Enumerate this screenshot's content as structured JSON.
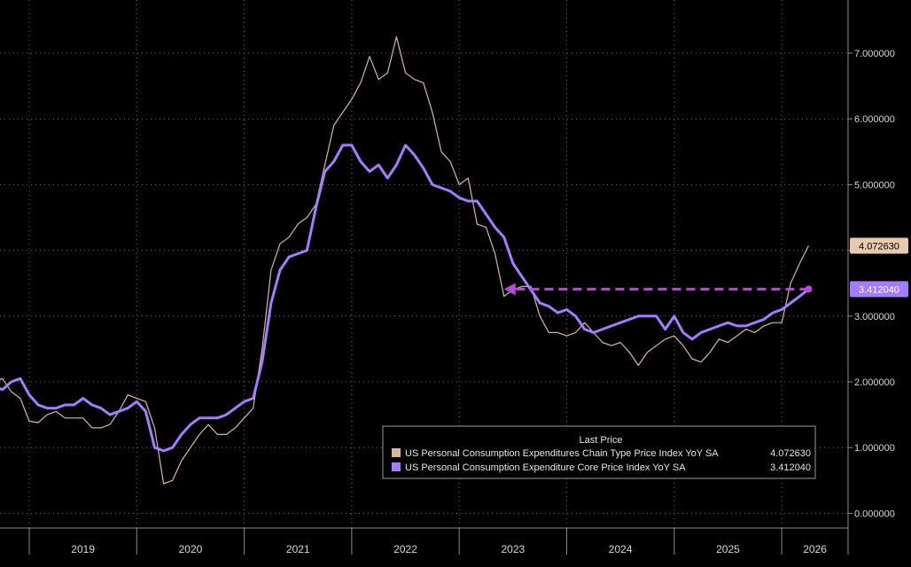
{
  "chart_data": {
    "type": "line",
    "title": "",
    "xlabel": "",
    "ylabel": "",
    "ylim": [
      0,
      7.5
    ],
    "y_ticks": [
      "0.000000",
      "1.000000",
      "2.000000",
      "3.000000",
      "4.000000",
      "5.000000",
      "6.000000",
      "7.000000"
    ],
    "x_ticks": [
      "2019",
      "2020",
      "2021",
      "2022",
      "2023",
      "2024",
      "2025",
      "2026"
    ],
    "grid": true,
    "legend_position": "bottom-right",
    "legend_title": "Last Price",
    "series": [
      {
        "name": "US Personal Consumption Expenditures Chain Type Price Index YoY SA",
        "last_price": "4.072630",
        "color": "#d9b89c",
        "x": [
          "2018-08",
          "2018-09",
          "2018-10",
          "2018-11",
          "2018-12",
          "2019-01",
          "2019-02",
          "2019-03",
          "2019-04",
          "2019-05",
          "2019-06",
          "2019-07",
          "2019-08",
          "2019-09",
          "2019-10",
          "2019-11",
          "2019-12",
          "2020-01",
          "2020-02",
          "2020-03",
          "2020-04",
          "2020-05",
          "2020-06",
          "2020-07",
          "2020-08",
          "2020-09",
          "2020-10",
          "2020-11",
          "2020-12",
          "2021-01",
          "2021-02",
          "2021-03",
          "2021-04",
          "2021-05",
          "2021-06",
          "2021-07",
          "2021-08",
          "2021-09",
          "2021-10",
          "2021-11",
          "2021-12",
          "2022-01",
          "2022-02",
          "2022-03",
          "2022-04",
          "2022-05",
          "2022-06",
          "2022-07",
          "2022-08",
          "2022-09",
          "2022-10",
          "2022-11",
          "2022-12",
          "2023-01",
          "2023-02",
          "2023-03",
          "2023-04",
          "2023-05",
          "2023-06",
          "2023-07",
          "2023-08",
          "2023-09",
          "2023-10",
          "2023-11",
          "2023-12",
          "2024-01",
          "2024-02",
          "2024-03",
          "2024-04",
          "2024-05",
          "2024-06",
          "2024-07",
          "2024-08",
          "2024-09",
          "2024-10",
          "2024-11",
          "2024-12",
          "2025-01",
          "2025-02",
          "2025-03",
          "2025-04",
          "2025-05",
          "2025-06",
          "2025-07",
          "2025-08",
          "2025-09",
          "2025-10",
          "2025-11",
          "2025-12",
          "2026-01",
          "2026-02",
          "2026-03",
          "2026-04"
        ],
        "values": [
          2.15,
          2.0,
          2.05,
          1.85,
          1.75,
          1.4,
          1.38,
          1.5,
          1.55,
          1.45,
          1.45,
          1.45,
          1.3,
          1.3,
          1.35,
          1.55,
          1.8,
          1.75,
          1.7,
          1.3,
          0.45,
          0.5,
          0.8,
          1.0,
          1.2,
          1.35,
          1.2,
          1.2,
          1.3,
          1.45,
          1.6,
          2.5,
          3.7,
          4.1,
          4.2,
          4.4,
          4.5,
          4.7,
          5.3,
          5.9,
          6.1,
          6.3,
          6.55,
          6.95,
          6.6,
          6.7,
          7.25,
          6.7,
          6.6,
          6.55,
          6.1,
          5.5,
          5.35,
          5.0,
          5.1,
          4.4,
          4.35,
          3.95,
          3.3,
          3.4,
          3.45,
          3.45,
          3.0,
          2.75,
          2.75,
          2.7,
          2.75,
          2.9,
          2.75,
          2.6,
          2.55,
          2.6,
          2.45,
          2.25,
          2.45,
          2.55,
          2.65,
          2.7,
          2.55,
          2.35,
          2.3,
          2.45,
          2.65,
          2.6,
          2.7,
          2.8,
          2.75,
          2.85,
          2.9,
          2.9,
          3.5,
          3.8,
          4.07
        ]
      },
      {
        "name": "US Personal Consumption Expenditure Core Price Index YoY SA",
        "last_price": "3.412040",
        "color": "#a47cff",
        "x": [
          "2018-08",
          "2018-09",
          "2018-10",
          "2018-11",
          "2018-12",
          "2019-01",
          "2019-02",
          "2019-03",
          "2019-04",
          "2019-05",
          "2019-06",
          "2019-07",
          "2019-08",
          "2019-09",
          "2019-10",
          "2019-11",
          "2019-12",
          "2020-01",
          "2020-02",
          "2020-03",
          "2020-04",
          "2020-05",
          "2020-06",
          "2020-07",
          "2020-08",
          "2020-09",
          "2020-10",
          "2020-11",
          "2020-12",
          "2021-01",
          "2021-02",
          "2021-03",
          "2021-04",
          "2021-05",
          "2021-06",
          "2021-07",
          "2021-08",
          "2021-09",
          "2021-10",
          "2021-11",
          "2021-12",
          "2022-01",
          "2022-02",
          "2022-03",
          "2022-04",
          "2022-05",
          "2022-06",
          "2022-07",
          "2022-08",
          "2022-09",
          "2022-10",
          "2022-11",
          "2022-12",
          "2023-01",
          "2023-02",
          "2023-03",
          "2023-04",
          "2023-05",
          "2023-06",
          "2023-07",
          "2023-08",
          "2023-09",
          "2023-10",
          "2023-11",
          "2023-12",
          "2024-01",
          "2024-02",
          "2024-03",
          "2024-04",
          "2024-05",
          "2024-06",
          "2024-07",
          "2024-08",
          "2024-09",
          "2024-10",
          "2024-11",
          "2024-12",
          "2025-01",
          "2025-02",
          "2025-03",
          "2025-04",
          "2025-05",
          "2025-06",
          "2025-07",
          "2025-08",
          "2025-09",
          "2025-10",
          "2025-11",
          "2025-12",
          "2026-01",
          "2026-02",
          "2026-03",
          "2026-04"
        ],
        "values": [
          1.95,
          1.95,
          1.88,
          2.0,
          2.05,
          1.8,
          1.65,
          1.6,
          1.6,
          1.65,
          1.65,
          1.75,
          1.65,
          1.6,
          1.5,
          1.55,
          1.6,
          1.7,
          1.55,
          1.0,
          0.95,
          1.0,
          1.2,
          1.35,
          1.45,
          1.45,
          1.45,
          1.5,
          1.6,
          1.7,
          1.75,
          2.3,
          3.2,
          3.7,
          3.9,
          3.95,
          4.0,
          4.65,
          5.2,
          5.35,
          5.6,
          5.6,
          5.35,
          5.2,
          5.3,
          5.1,
          5.3,
          5.6,
          5.45,
          5.25,
          5.0,
          4.95,
          4.9,
          4.8,
          4.75,
          4.75,
          4.55,
          4.35,
          4.2,
          3.8,
          3.6,
          3.4,
          3.2,
          3.15,
          3.05,
          3.1,
          3.0,
          2.8,
          2.75,
          2.8,
          2.85,
          2.9,
          2.95,
          3.0,
          3.0,
          3.0,
          2.8,
          3.0,
          2.75,
          2.65,
          2.75,
          2.8,
          2.85,
          2.9,
          2.85,
          2.85,
          2.9,
          2.95,
          3.05,
          3.1,
          3.2,
          3.3,
          3.41
        ]
      }
    ],
    "annotations": [
      {
        "type": "dashed-arrow",
        "color": "#b44ad8",
        "from_date": "2026-04",
        "to_date": "2023-06",
        "y": 3.41
      }
    ]
  }
}
